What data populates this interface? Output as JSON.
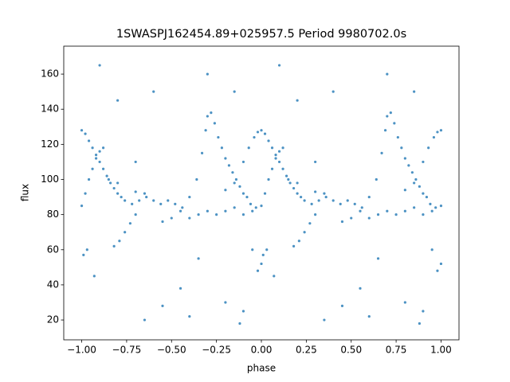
{
  "chart_data": {
    "type": "scatter",
    "title": "1SWASPJ162454.89+025957.5 Period 9980702.0s",
    "x_label": "phase",
    "y_label": "flux",
    "xlim": [
      -1.1,
      1.1
    ],
    "ylim": [
      8.7,
      175.9
    ],
    "xticks": [
      {
        "value": -1,
        "label": "−1.00"
      },
      {
        "value": -0.75,
        "label": "−0.75"
      },
      {
        "value": -0.5,
        "label": "−0.50"
      },
      {
        "value": -0.25,
        "label": "−0.25"
      },
      {
        "value": 0,
        "label": "0.00"
      },
      {
        "value": 0.25,
        "label": "0.25"
      },
      {
        "value": 0.5,
        "label": "0.50"
      },
      {
        "value": 0.75,
        "label": "0.75"
      },
      {
        "value": 1,
        "label": "1.00"
      }
    ],
    "yticks": [
      20,
      40,
      60,
      80,
      100,
      120,
      140,
      160
    ],
    "grid": false,
    "series": [
      {
        "color": "#1f77b4",
        "x": [
          -1.0,
          -0.98,
          -0.96,
          -0.94,
          -0.92,
          -0.9,
          -0.88,
          -0.86,
          -0.84,
          -0.82,
          -0.8,
          -0.78,
          -0.76,
          -1.0,
          -0.98,
          -0.96,
          -0.94,
          -0.92,
          -0.9,
          -0.88,
          -0.82,
          -0.79,
          -0.76,
          -0.73,
          -0.7,
          -0.72,
          -0.68,
          -0.64,
          -0.6,
          -0.56,
          -0.52,
          -0.48,
          -0.44,
          -0.85,
          -0.8,
          -0.7,
          -0.65,
          -0.55,
          -0.5,
          -0.45,
          -0.4,
          -0.36,
          -0.33,
          -0.31,
          -0.3,
          -0.28,
          -0.26,
          -0.24,
          -0.22,
          -0.2,
          -0.18,
          -0.16,
          -0.14,
          -0.12,
          -0.1,
          -0.08,
          -0.06,
          -0.03,
          -0.4,
          -0.35,
          -0.3,
          -0.25,
          -0.2,
          -0.15,
          -0.1,
          -0.05,
          -0.2,
          -0.15,
          -0.1,
          -0.07,
          -0.04,
          -0.02,
          -0.99,
          -0.97,
          -0.93,
          -0.7,
          -0.45,
          -0.35,
          -0.15,
          -0.05,
          -0.02,
          -0.2,
          -0.1,
          -0.55,
          -0.8,
          -0.3,
          -0.9,
          -0.6,
          -0.4,
          -0.12,
          -0.65,
          0.0,
          0.0,
          0.02,
          0.04,
          0.06,
          0.08,
          0.1,
          0.12,
          0.14,
          0.16,
          0.18,
          0.2,
          0.22,
          0.24,
          0.0,
          0.02,
          0.04,
          0.06,
          0.08,
          0.1,
          0.12,
          0.18,
          0.21,
          0.24,
          0.27,
          0.3,
          0.28,
          0.32,
          0.36,
          0.4,
          0.44,
          0.48,
          0.52,
          0.56,
          0.15,
          0.2,
          0.3,
          0.35,
          0.45,
          0.5,
          0.55,
          0.6,
          0.64,
          0.67,
          0.69,
          0.7,
          0.72,
          0.74,
          0.76,
          0.78,
          0.8,
          0.82,
          0.84,
          0.86,
          0.88,
          0.9,
          0.92,
          0.94,
          0.97,
          0.6,
          0.65,
          0.7,
          0.75,
          0.8,
          0.85,
          0.9,
          0.95,
          0.8,
          0.85,
          0.9,
          0.93,
          0.96,
          0.98,
          0.01,
          0.03,
          0.07,
          0.3,
          0.55,
          0.65,
          0.85,
          0.95,
          0.98,
          0.8,
          0.9,
          0.45,
          0.2,
          0.7,
          0.1,
          0.4,
          0.6,
          0.88,
          0.35,
          1.0,
          1.0,
          1.0
        ],
        "values": [
          128,
          126,
          122,
          118,
          114,
          110,
          106,
          102,
          98,
          95,
          92,
          90,
          88,
          85,
          92,
          100,
          106,
          112,
          116,
          118,
          62,
          65,
          70,
          75,
          80,
          86,
          88,
          90,
          88,
          86,
          88,
          86,
          84,
          100,
          98,
          93,
          92,
          76,
          78,
          82,
          90,
          100,
          115,
          128,
          136,
          138,
          132,
          124,
          118,
          112,
          108,
          104,
          100,
          96,
          92,
          90,
          86,
          84,
          78,
          80,
          82,
          80,
          82,
          84,
          80,
          82,
          94,
          98,
          110,
          118,
          124,
          127,
          57,
          60,
          45,
          110,
          38,
          55,
          150,
          60,
          48,
          30,
          25,
          28,
          145,
          160,
          165,
          150,
          22,
          18,
          20,
          52,
          128,
          126,
          122,
          118,
          114,
          110,
          106,
          102,
          98,
          95,
          92,
          90,
          88,
          85,
          92,
          100,
          106,
          112,
          116,
          118,
          62,
          65,
          70,
          75,
          80,
          86,
          88,
          90,
          88,
          86,
          88,
          86,
          84,
          100,
          98,
          93,
          92,
          76,
          78,
          82,
          90,
          100,
          115,
          128,
          136,
          138,
          132,
          124,
          118,
          112,
          108,
          104,
          100,
          96,
          92,
          90,
          86,
          84,
          78,
          80,
          82,
          80,
          82,
          84,
          80,
          82,
          94,
          98,
          110,
          118,
          124,
          127,
          57,
          60,
          45,
          110,
          38,
          55,
          150,
          60,
          48,
          30,
          25,
          28,
          145,
          160,
          165,
          150,
          22,
          18,
          20,
          52,
          128,
          85
        ]
      }
    ]
  }
}
